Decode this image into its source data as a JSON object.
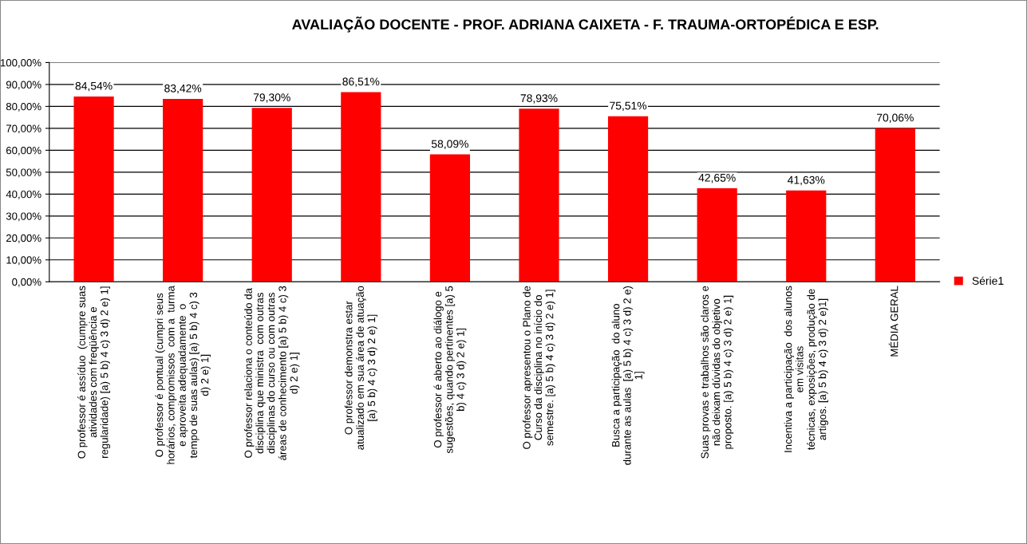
{
  "chart_data": {
    "type": "bar",
    "title": "AVALIAÇÃO DOCENTE - PROF. ADRIANA CAIXETA - F. TRAUMA-ORTOPÉDICA E ESP.",
    "categories": [
      "O professor é assíduo  (cumpre suas\natividades com freqüência e\nregularidade) [a) 5 b) 4 c) 3 d) 2 e) 1]",
      "O professor é pontual (cumpri seus\nhorários, compromissos  com a  turma\ne aproveita adequadamente  o\ntempo de suas aulas) [a) 5 b) 4 c) 3\nd) 2 e) 1]",
      "O professor relaciona o conteúdo da\ndisciplina que ministra  com outras\ndisciplinas do curso ou com outras\náreas de conhecimento [a) 5 b) 4 c) 3\nd) 2 e) 1]",
      "O professor demonstra estar\natualizado em sua área de atuação\n[a) 5 b) 4 c) 3 d) 2 e) 1]",
      "O professor é aberto ao diálogo e\nsugestões, quando pertinentes [a) 5\nb) 4 c) 3 d) 2 e) 1]",
      "O professor apresentou o Plano de\nCurso da disciplina no início do\nsemestre. [a) 5 b) 4 c) 3 d) 2 e) 1]",
      "Busca a participação  do aluno\ndurante as aulas  [a) 5 b) 4 c) 3 d) 2 e)\n1]",
      "Suas provas e trabalhos são claros e\nnão deixam dúvidas do objetivo\nproposto. [a) 5 b) 4 c) 3 d) 2 e) 1]",
      "Incentiva a participação  dos alunos\nem visitas\ntécnicas, exposições, produção de\nartigos. [a) 5 b) 4 c) 3 d) 2 e)1]",
      "MÉDIA GERAL"
    ],
    "series": [
      {
        "name": "Série1",
        "color": "#ff0000",
        "values": [
          84.54,
          83.42,
          79.3,
          86.51,
          58.09,
          78.93,
          75.51,
          42.65,
          41.63,
          70.06
        ],
        "value_labels": [
          "84,54%",
          "83,42%",
          "79,30%",
          "86,51%",
          "58,09%",
          "78,93%",
          "75,51%",
          "42,65%",
          "41,63%",
          "70,06%"
        ]
      }
    ],
    "ylim": [
      0,
      100
    ],
    "yticks": [
      {
        "value": 0,
        "label": "0,00%"
      },
      {
        "value": 10,
        "label": "10,00%"
      },
      {
        "value": 20,
        "label": "20,00%"
      },
      {
        "value": 30,
        "label": "30,00%"
      },
      {
        "value": 40,
        "label": "40,00%"
      },
      {
        "value": 50,
        "label": "50,00%"
      },
      {
        "value": 60,
        "label": "60,00%"
      },
      {
        "value": 70,
        "label": "70,00%"
      },
      {
        "value": 80,
        "label": "80,00%"
      },
      {
        "value": 90,
        "label": "90,00%"
      },
      {
        "value": 100,
        "label": "100,00%"
      }
    ],
    "grid": "y",
    "legend": "right"
  }
}
